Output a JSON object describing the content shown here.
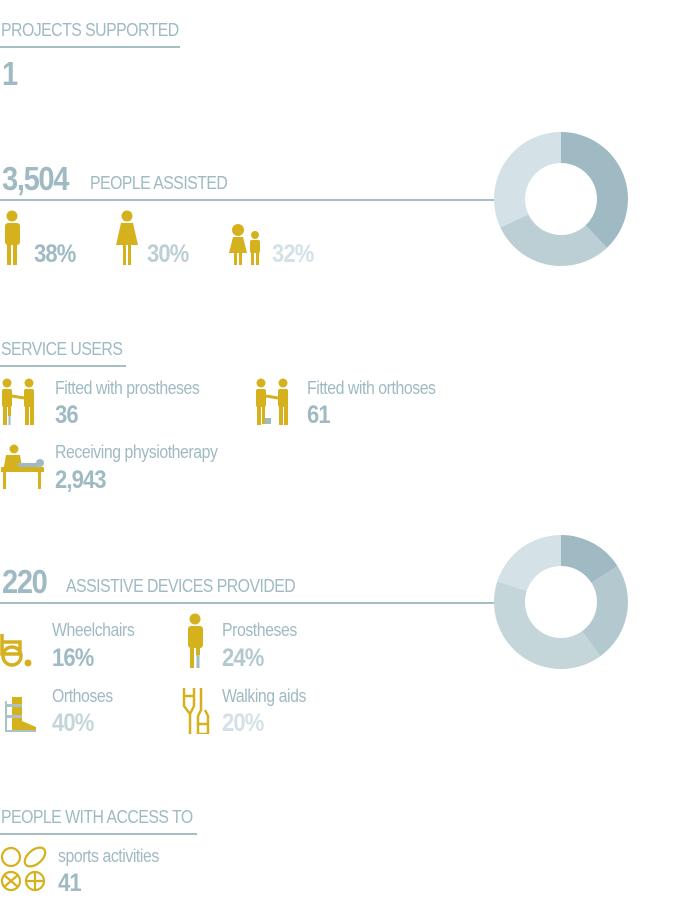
{
  "colors": {
    "accent": "#d6b11e",
    "dark": "#9fbac3",
    "medium": "#bccfd5",
    "light": "#d4e1e6"
  },
  "projects": {
    "title": "PROJECTS SUPPORTED",
    "value": "1"
  },
  "people": {
    "value": "3,504",
    "label": "PEOPLE ASSISTED",
    "groups": [
      {
        "icon": "man-icon",
        "percent": "38%",
        "value": 38
      },
      {
        "icon": "woman-icon",
        "percent": "30%",
        "value": 30
      },
      {
        "icon": "children-icon",
        "percent": "32%",
        "value": 32
      }
    ]
  },
  "service_users": {
    "title": "SERVICE USERS",
    "items": [
      {
        "icon": "prosthesis-fitting-icon",
        "label": "Fitted with prostheses",
        "value": "36"
      },
      {
        "icon": "orthosis-fitting-icon",
        "label": "Fitted with orthoses",
        "value": "61"
      },
      {
        "icon": "physiotherapy-icon",
        "label": "Receiving physiotherapy",
        "value": "2,943"
      }
    ]
  },
  "devices": {
    "value": "220",
    "label": "ASSISTIVE DEVICES PROVIDED",
    "items": [
      {
        "icon": "wheelchair-icon",
        "label": "Wheelchairs",
        "percent": "16%",
        "value": 16
      },
      {
        "icon": "prosthesis-icon",
        "label": "Prostheses",
        "percent": "24%",
        "value": 24
      },
      {
        "icon": "orthosis-icon",
        "label": "Orthoses",
        "percent": "40%",
        "value": 40
      },
      {
        "icon": "crutches-icon",
        "label": "Walking aids",
        "percent": "20%",
        "value": 20
      }
    ]
  },
  "access": {
    "title": "PEOPLE WITH ACCESS TO",
    "items": [
      {
        "icon": "sports-balls-icon",
        "label": "sports activities",
        "value": "41"
      }
    ]
  },
  "chart_data": [
    {
      "type": "pie",
      "donut": true,
      "values": [
        38,
        30,
        32
      ],
      "colors": [
        "#9fbac3",
        "#bccfd5",
        "#d4e1e6"
      ]
    },
    {
      "type": "pie",
      "donut": true,
      "values": [
        16,
        24,
        40,
        20
      ],
      "colors": [
        "#9fbac3",
        "#b3c9cf",
        "#c5d6db",
        "#d4e1e6"
      ]
    }
  ]
}
